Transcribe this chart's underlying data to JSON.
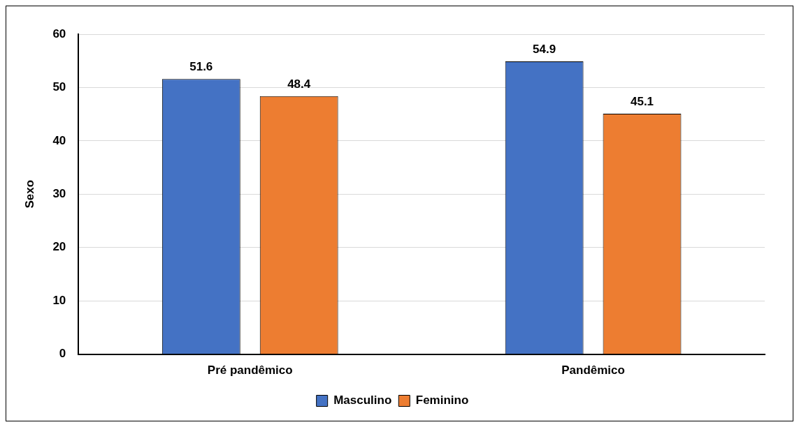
{
  "chart_data": {
    "type": "bar",
    "ylabel": "Sexo",
    "categories": [
      "Pré pandêmico",
      "Pandêmico"
    ],
    "series": [
      {
        "name": "Masculino",
        "color": "#4472c4",
        "values": [
          51.6,
          54.9
        ]
      },
      {
        "name": "Feminino",
        "color": "#ed7d31",
        "values": [
          48.4,
          45.1
        ]
      }
    ],
    "ylim": [
      0,
      60
    ],
    "yticks": [
      0,
      10,
      20,
      30,
      40,
      50,
      60
    ],
    "grid": "y",
    "legend": "bottom",
    "data_labels": true
  }
}
